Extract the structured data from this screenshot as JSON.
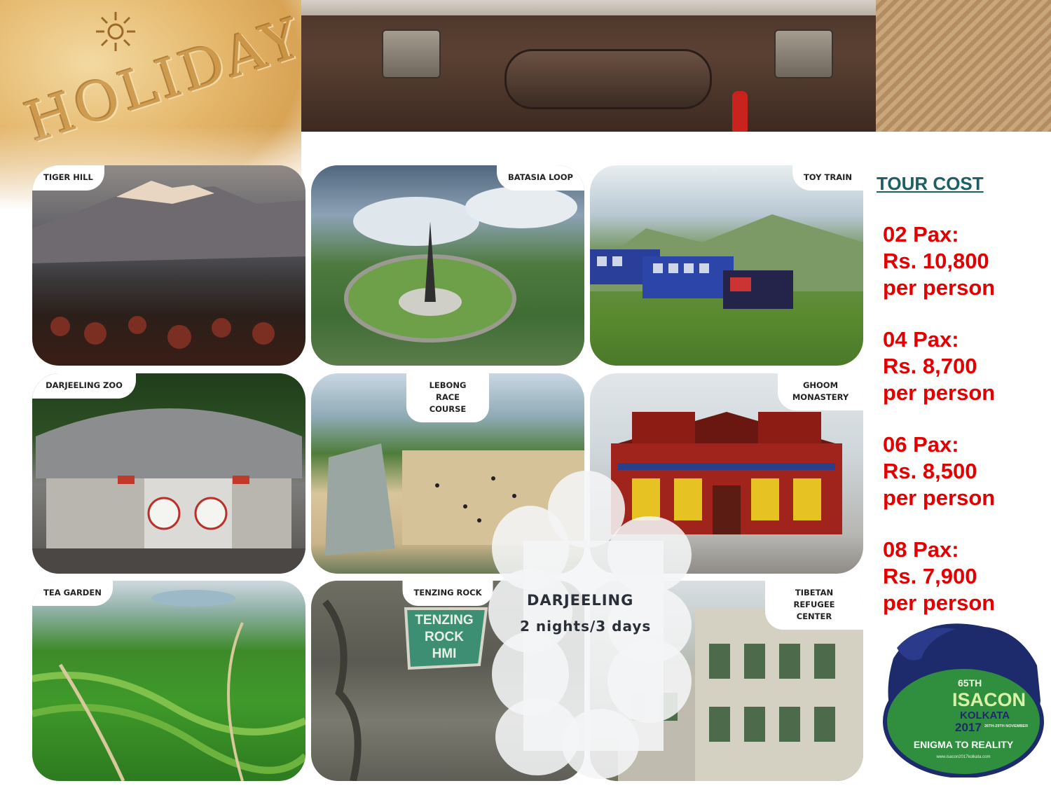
{
  "banner": {
    "holiday_text": "HOLIDAY",
    "icon": "sun-icon"
  },
  "tiles": [
    {
      "label": "TIGER HILL"
    },
    {
      "label": "BATASIA LOOP"
    },
    {
      "label": "TOY TRAIN"
    },
    {
      "label": "DARJEELING ZOO"
    },
    {
      "label": "LEBONG RACE COURSE"
    },
    {
      "label": "GHOOM MONASTERY"
    },
    {
      "label": "TEA GARDEN"
    },
    {
      "label": "TENZING ROCK"
    },
    {
      "label": "TIBETAN REFUGEE CENTER"
    }
  ],
  "destination": {
    "title": "DARJEELING",
    "duration": "2 nights/3 days"
  },
  "tour_cost": {
    "heading": "TOUR COST",
    "prices": [
      {
        "pax": "02 Pax:",
        "amount": "Rs. 10,800",
        "unit": "per person"
      },
      {
        "pax": "04 Pax:",
        "amount": "Rs. 8,700",
        "unit": "per person"
      },
      {
        "pax": "06 Pax:",
        "amount": "Rs. 8,500",
        "unit": "per person"
      },
      {
        "pax": "08 Pax:",
        "amount": "Rs. 7,900",
        "unit": "per person"
      }
    ]
  },
  "logo": {
    "edition": "65TH",
    "name": "ISACON",
    "city": "KOLKATA",
    "year": "2017",
    "dates": "26TH-29TH NOVEMBER",
    "tagline": "ENIGMA TO REALITY",
    "website": "www.isacon2017kolkata.com"
  },
  "colors": {
    "price_red": "#e20000",
    "heading_teal": "#1d5f63",
    "logo_navy": "#1d2a6b",
    "logo_green": "#2f8f3e"
  }
}
